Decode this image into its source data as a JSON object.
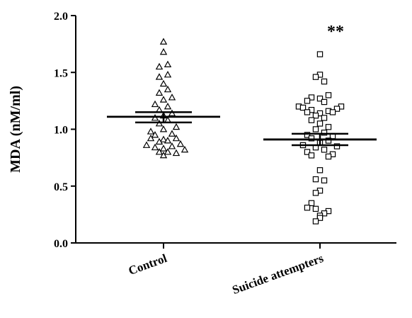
{
  "chart_data": {
    "type": "scatter",
    "ylabel": "MDA (nM/ml)",
    "ylim": [
      0.0,
      2.0
    ],
    "yticks": [
      "0.0",
      "0.5",
      "1.0",
      "1.5",
      "2.0"
    ],
    "categories": [
      "Control",
      "Suicide attempters"
    ],
    "annotation": "**",
    "groups": [
      {
        "category": "Control",
        "marker": "triangle",
        "mean": 1.11,
        "sem_low": 1.06,
        "sem_high": 1.15,
        "points": [
          {
            "y": 1.77,
            "j": 0
          },
          {
            "y": 1.68,
            "j": 0
          },
          {
            "y": 1.57,
            "j": 1
          },
          {
            "y": 1.55,
            "j": -1
          },
          {
            "y": 1.48,
            "j": 1
          },
          {
            "y": 1.46,
            "j": -1
          },
          {
            "y": 1.4,
            "j": 0
          },
          {
            "y": 1.35,
            "j": 1
          },
          {
            "y": 1.32,
            "j": -1
          },
          {
            "y": 1.28,
            "j": 2
          },
          {
            "y": 1.26,
            "j": 0
          },
          {
            "y": 1.22,
            "j": -2
          },
          {
            "y": 1.2,
            "j": 1
          },
          {
            "y": 1.17,
            "j": -1
          },
          {
            "y": 1.14,
            "j": 2
          },
          {
            "y": 1.12,
            "j": 0
          },
          {
            "y": 1.1,
            "j": -2
          },
          {
            "y": 1.08,
            "j": 1
          },
          {
            "y": 1.05,
            "j": -1
          },
          {
            "y": 1.02,
            "j": 3
          },
          {
            "y": 1.0,
            "j": 0
          },
          {
            "y": 0.98,
            "j": -3
          },
          {
            "y": 0.96,
            "j": 2
          },
          {
            "y": 0.95,
            "j": -2
          },
          {
            "y": 0.92,
            "j": 3
          },
          {
            "y": 0.92,
            "j": -3
          },
          {
            "y": 0.91,
            "j": 0
          },
          {
            "y": 0.9,
            "j": 1
          },
          {
            "y": 0.89,
            "j": -1
          },
          {
            "y": 0.87,
            "j": 4
          },
          {
            "y": 0.86,
            "j": -4
          },
          {
            "y": 0.85,
            "j": 2
          },
          {
            "y": 0.84,
            "j": -2
          },
          {
            "y": 0.83,
            "j": 0
          },
          {
            "y": 0.82,
            "j": 5
          },
          {
            "y": 0.8,
            "j": 1
          },
          {
            "y": 0.8,
            "j": -1
          },
          {
            "y": 0.79,
            "j": 3
          },
          {
            "y": 0.77,
            "j": 0
          }
        ]
      },
      {
        "category": "Suicide attempters",
        "marker": "square",
        "mean": 0.91,
        "sem_low": 0.86,
        "sem_high": 0.96,
        "points": [
          {
            "y": 1.66,
            "j": 0
          },
          {
            "y": 1.48,
            "j": 0
          },
          {
            "y": 1.46,
            "j": -1
          },
          {
            "y": 1.42,
            "j": 1
          },
          {
            "y": 1.3,
            "j": 2
          },
          {
            "y": 1.28,
            "j": -2
          },
          {
            "y": 1.27,
            "j": 0
          },
          {
            "y": 1.25,
            "j": -3
          },
          {
            "y": 1.24,
            "j": 1
          },
          {
            "y": 1.2,
            "j": -5
          },
          {
            "y": 1.2,
            "j": 5
          },
          {
            "y": 1.19,
            "j": -4
          },
          {
            "y": 1.18,
            "j": 4
          },
          {
            "y": 1.17,
            "j": -2
          },
          {
            "y": 1.16,
            "j": 2
          },
          {
            "y": 1.15,
            "j": -3
          },
          {
            "y": 1.15,
            "j": 3
          },
          {
            "y": 1.14,
            "j": 0
          },
          {
            "y": 1.12,
            "j": -1
          },
          {
            "y": 1.1,
            "j": 1
          },
          {
            "y": 1.08,
            "j": -2
          },
          {
            "y": 1.05,
            "j": 0
          },
          {
            "y": 1.02,
            "j": 2
          },
          {
            "y": 1.0,
            "j": -1
          },
          {
            "y": 0.97,
            "j": 1
          },
          {
            "y": 0.95,
            "j": -3
          },
          {
            "y": 0.94,
            "j": 3
          },
          {
            "y": 0.92,
            "j": -2
          },
          {
            "y": 0.9,
            "j": 2
          },
          {
            "y": 0.88,
            "j": 0
          },
          {
            "y": 0.86,
            "j": -4
          },
          {
            "y": 0.85,
            "j": 4
          },
          {
            "y": 0.84,
            "j": -1
          },
          {
            "y": 0.82,
            "j": 1
          },
          {
            "y": 0.8,
            "j": -3
          },
          {
            "y": 0.78,
            "j": 3
          },
          {
            "y": 0.77,
            "j": -2
          },
          {
            "y": 0.76,
            "j": 2
          },
          {
            "y": 0.64,
            "j": 0
          },
          {
            "y": 0.56,
            "j": -1
          },
          {
            "y": 0.55,
            "j": 1
          },
          {
            "y": 0.46,
            "j": 0
          },
          {
            "y": 0.44,
            "j": -1
          },
          {
            "y": 0.35,
            "j": -2
          },
          {
            "y": 0.31,
            "j": -3
          },
          {
            "y": 0.3,
            "j": -1
          },
          {
            "y": 0.28,
            "j": 2
          },
          {
            "y": 0.26,
            "j": 1
          },
          {
            "y": 0.24,
            "j": 0
          },
          {
            "y": 0.22,
            "j": 0
          },
          {
            "y": 0.19,
            "j": -1
          }
        ]
      }
    ]
  }
}
